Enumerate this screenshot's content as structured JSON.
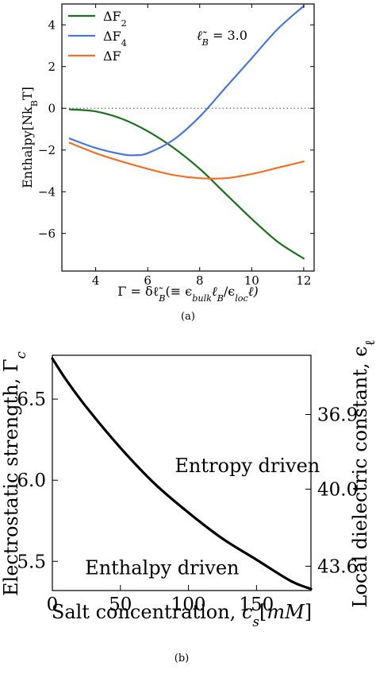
{
  "chart_data": [
    {
      "type": "line",
      "panel_label": "(a)",
      "xlabel": "Γ = δℓ̃B(≡ ϵbulkℓB/ϵlocℓ)",
      "ylabel": "Enthalpy[NkBT]",
      "annotation": "ℓ̃B = 3.0",
      "xlim": [
        2.7,
        12.4
      ],
      "ylim": [
        -7.8,
        5.0
      ],
      "xticks": [
        4,
        6,
        8,
        10,
        12
      ],
      "yticks": [
        4,
        2,
        0,
        -2,
        -4,
        -6
      ],
      "grid": false,
      "legend_position": "top-left",
      "reference_line": {
        "y": 0,
        "style": "dotted",
        "color": "#808080"
      },
      "series": [
        {
          "name": "ΔF2",
          "name_base": "ΔF",
          "name_sub": "2",
          "color": "#1e6e1e",
          "x": [
            3,
            4,
            5,
            6,
            7,
            8,
            9,
            10,
            11,
            12
          ],
          "y": [
            -0.05,
            -0.15,
            -0.5,
            -1.1,
            -1.9,
            -2.9,
            -4.1,
            -5.3,
            -6.4,
            -7.2
          ]
        },
        {
          "name": "ΔF4",
          "name_base": "ΔF",
          "name_sub": "4",
          "color": "#4a77d6",
          "x": [
            3,
            4,
            5,
            5.5,
            6,
            7,
            8,
            9,
            10,
            11,
            12
          ],
          "y": [
            -1.45,
            -1.9,
            -2.2,
            -2.25,
            -2.15,
            -1.5,
            -0.4,
            1.0,
            2.4,
            3.8,
            4.9
          ]
        },
        {
          "name": "ΔF",
          "name_base": "ΔF",
          "name_sub": "",
          "color": "#f07026",
          "x": [
            3,
            4,
            5,
            6,
            7,
            8,
            9,
            10,
            11,
            12
          ],
          "y": [
            -1.65,
            -2.15,
            -2.55,
            -2.9,
            -3.2,
            -3.35,
            -3.35,
            -3.15,
            -2.85,
            -2.55
          ]
        }
      ]
    },
    {
      "type": "line",
      "panel_label": "(b)",
      "xlabel": "Salt concentration, cs[mM]",
      "ylabel": "Electrostatic strength, Γc",
      "y2label": "Local dielectric constant, ϵℓ",
      "xlim": [
        0,
        190
      ],
      "ylim": [
        5.32,
        6.77
      ],
      "xticks": [
        0,
        50,
        100,
        150
      ],
      "yticks": [
        5.5,
        6.0,
        6.5
      ],
      "y2ticks": [
        {
          "label": "36.9",
          "at": 6.405
        },
        {
          "label": "40.0",
          "at": 5.945
        },
        {
          "label": "43.6",
          "at": 5.47
        }
      ],
      "grid": false,
      "annotations": [
        {
          "text": "Entropy driven",
          "x": 90,
          "y": 6.05
        },
        {
          "text": "Enthalpy driven",
          "x": 24,
          "y": 5.42
        }
      ],
      "series": [
        {
          "name": "",
          "color": "#000000",
          "x": [
            0,
            10,
            25,
            50,
            75,
            100,
            125,
            150,
            175,
            190
          ],
          "y": [
            6.75,
            6.62,
            6.45,
            6.2,
            5.98,
            5.8,
            5.64,
            5.51,
            5.38,
            5.33
          ]
        }
      ]
    }
  ]
}
